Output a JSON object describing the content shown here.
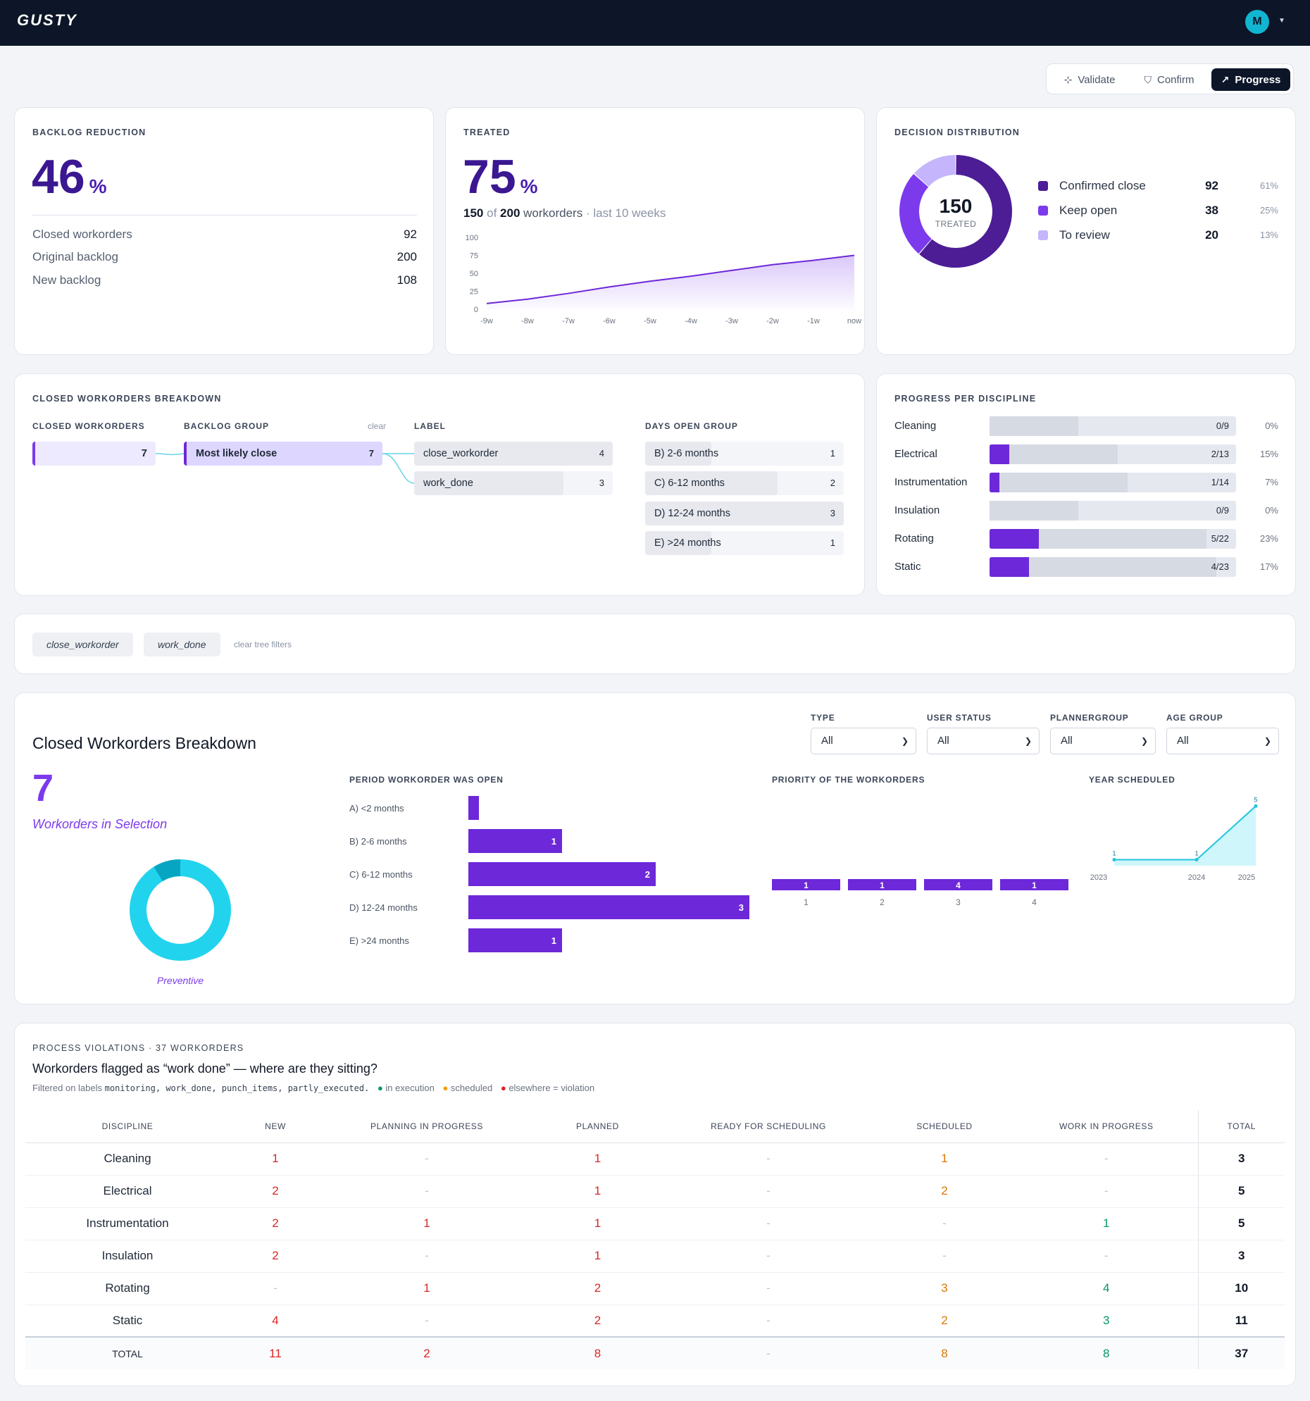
{
  "app": {
    "logo": "GUSTY",
    "avatar_initial": "M"
  },
  "modes": {
    "validate": "Validate",
    "confirm": "Confirm",
    "progress": "Progress"
  },
  "backlog": {
    "title": "BACKLOG REDUCTION",
    "value": "46",
    "unit": "%",
    "rows": [
      {
        "label": "Closed workorders",
        "value": "92"
      },
      {
        "label": "Original backlog",
        "value": "200"
      },
      {
        "label": "New backlog",
        "value": "108"
      }
    ]
  },
  "treated": {
    "title": "TREATED",
    "value": "75",
    "unit": "%",
    "count": "150",
    "of": "of",
    "total": "200",
    "workorders": "workorders",
    "period": "· last 10 weeks"
  },
  "chart_data": [
    {
      "type": "area",
      "title": "",
      "x": [
        "-9w",
        "-8w",
        "-7w",
        "-6w",
        "-5w",
        "-4w",
        "-3w",
        "-2w",
        "-1w",
        "now"
      ],
      "values": [
        8,
        14,
        22,
        31,
        39,
        46,
        54,
        62,
        68,
        75
      ],
      "yticks": [
        "100",
        "75",
        "50",
        "25",
        "0"
      ],
      "ylim": [
        0,
        100
      ]
    },
    {
      "type": "pie",
      "title": "",
      "center_value": "150",
      "center_label": "TREATED",
      "slices": [
        {
          "label": "Confirmed close",
          "value": 92,
          "pct": "61%",
          "color": "#4c1d95"
        },
        {
          "label": "Keep open",
          "value": 38,
          "pct": "25%",
          "color": "#7c3aed"
        },
        {
          "label": "To review",
          "value": 20,
          "pct": "13%",
          "color": "#c4b5fd"
        }
      ]
    },
    {
      "type": "bar",
      "title": "PERIOD WORKORDER WAS OPEN",
      "categories": [
        "A) <2 months",
        "B) 2-6 months",
        "C) 6-12 months",
        "D) 12-24 months",
        "E) >24 months"
      ],
      "values": [
        0,
        1,
        2,
        3,
        1
      ],
      "labels": [
        "",
        "1",
        "2",
        "3",
        "1"
      ]
    },
    {
      "type": "bar",
      "title": "PRIORITY OF THE WORKORDERS",
      "categories": [
        "1",
        "2",
        "3",
        "4"
      ],
      "values": [
        1,
        1,
        4,
        1
      ]
    },
    {
      "type": "area",
      "title": "YEAR SCHEDULED",
      "x": [
        "2023",
        "2024",
        "2025"
      ],
      "values": [
        1,
        1,
        5
      ]
    },
    {
      "type": "pie",
      "title": "",
      "slices": [
        {
          "label": "Preventive",
          "value": 7,
          "color": "#22d3ee"
        }
      ]
    }
  ],
  "breakdown": {
    "title": "CLOSED WORKORDERS BREAKDOWN",
    "col_closed": "CLOSED WORKORDERS",
    "col_backlog": "BACKLOG GROUP",
    "col_label": "LABEL",
    "col_days": "DAYS OPEN GROUP",
    "clear": "clear",
    "closed_value": "7",
    "backlog_label": "Most likely close",
    "backlog_value": "7",
    "labels": [
      {
        "name": "close_workorder",
        "value": "4"
      },
      {
        "name": "work_done",
        "value": "3"
      }
    ],
    "days": [
      {
        "name": "B) 2-6 months",
        "value": "1"
      },
      {
        "name": "C) 6-12 months",
        "value": "2"
      },
      {
        "name": "D) 12-24 months",
        "value": "3"
      },
      {
        "name": "E) >24 months",
        "value": "1"
      }
    ]
  },
  "discipline": {
    "title": "PROGRESS PER DISCIPLINE",
    "rows": [
      {
        "name": "Cleaning",
        "done": 0,
        "total": 9,
        "label": "0/9",
        "pct": "0%"
      },
      {
        "name": "Electrical",
        "done": 2,
        "total": 13,
        "label": "2/13",
        "pct": "15%"
      },
      {
        "name": "Instrumentation",
        "done": 1,
        "total": 14,
        "label": "1/14",
        "pct": "7%"
      },
      {
        "name": "Insulation",
        "done": 0,
        "total": 9,
        "label": "0/9",
        "pct": "0%"
      },
      {
        "name": "Rotating",
        "done": 5,
        "total": 22,
        "label": "5/22",
        "pct": "23%"
      },
      {
        "name": "Static",
        "done": 4,
        "total": 23,
        "label": "4/23",
        "pct": "17%"
      }
    ]
  },
  "filters": {
    "chips": [
      "close_workorder",
      "work_done"
    ],
    "clear": "clear tree filters"
  },
  "cwb": {
    "title": "Closed Workorders Breakdown",
    "count": "7",
    "count_label": "Workorders in Selection",
    "donut_label": "Preventive",
    "selects": [
      {
        "label": "TYPE",
        "value": "All"
      },
      {
        "label": "USER STATUS",
        "value": "All"
      },
      {
        "label": "PLANNERGROUP",
        "value": "All"
      },
      {
        "label": "AGE GROUP",
        "value": "All"
      }
    ],
    "period_title": "PERIOD WORKORDER WAS OPEN",
    "priority_title": "PRIORITY OF THE WORKORDERS",
    "year_title": "YEAR SCHEDULED"
  },
  "violations": {
    "title": "PROCESS VIOLATIONS · 37 WORKORDERS",
    "heading": "Workorders flagged as “work done” — where are they sitting?",
    "filter_prefix": "Filtered on labels",
    "filter_labels": "monitoring, work_done, punch_items, partly_executed.",
    "legend": [
      "in execution",
      "scheduled",
      "elsewhere = violation"
    ],
    "legend_colors": [
      "#059669",
      "#f59e0b",
      "#dc2626"
    ],
    "columns": [
      "DISCIPLINE",
      "NEW",
      "PLANNING IN PROGRESS",
      "PLANNED",
      "READY FOR SCHEDULING",
      "SCHEDULED",
      "WORK IN PROGRESS",
      "TOTAL"
    ],
    "rows": [
      {
        "discipline": "Cleaning",
        "new": "1",
        "planning": "-",
        "planned": "1",
        "ready": "-",
        "scheduled": "1",
        "wip": "-",
        "total": "3"
      },
      {
        "discipline": "Electrical",
        "new": "2",
        "planning": "-",
        "planned": "1",
        "ready": "-",
        "scheduled": "2",
        "wip": "-",
        "total": "5"
      },
      {
        "discipline": "Instrumentation",
        "new": "2",
        "planning": "1",
        "planned": "1",
        "ready": "-",
        "scheduled": "-",
        "wip": "1",
        "total": "5"
      },
      {
        "discipline": "Insulation",
        "new": "2",
        "planning": "-",
        "planned": "1",
        "ready": "-",
        "scheduled": "-",
        "wip": "-",
        "total": "3"
      },
      {
        "discipline": "Rotating",
        "new": "-",
        "planning": "1",
        "planned": "2",
        "ready": "-",
        "scheduled": "3",
        "wip": "4",
        "total": "10"
      },
      {
        "discipline": "Static",
        "new": "4",
        "planning": "-",
        "planned": "2",
        "ready": "-",
        "scheduled": "2",
        "wip": "3",
        "total": "11"
      }
    ],
    "total_row": {
      "discipline": "TOTAL",
      "new": "11",
      "planning": "2",
      "planned": "8",
      "ready": "-",
      "scheduled": "8",
      "wip": "8",
      "total": "37"
    }
  }
}
